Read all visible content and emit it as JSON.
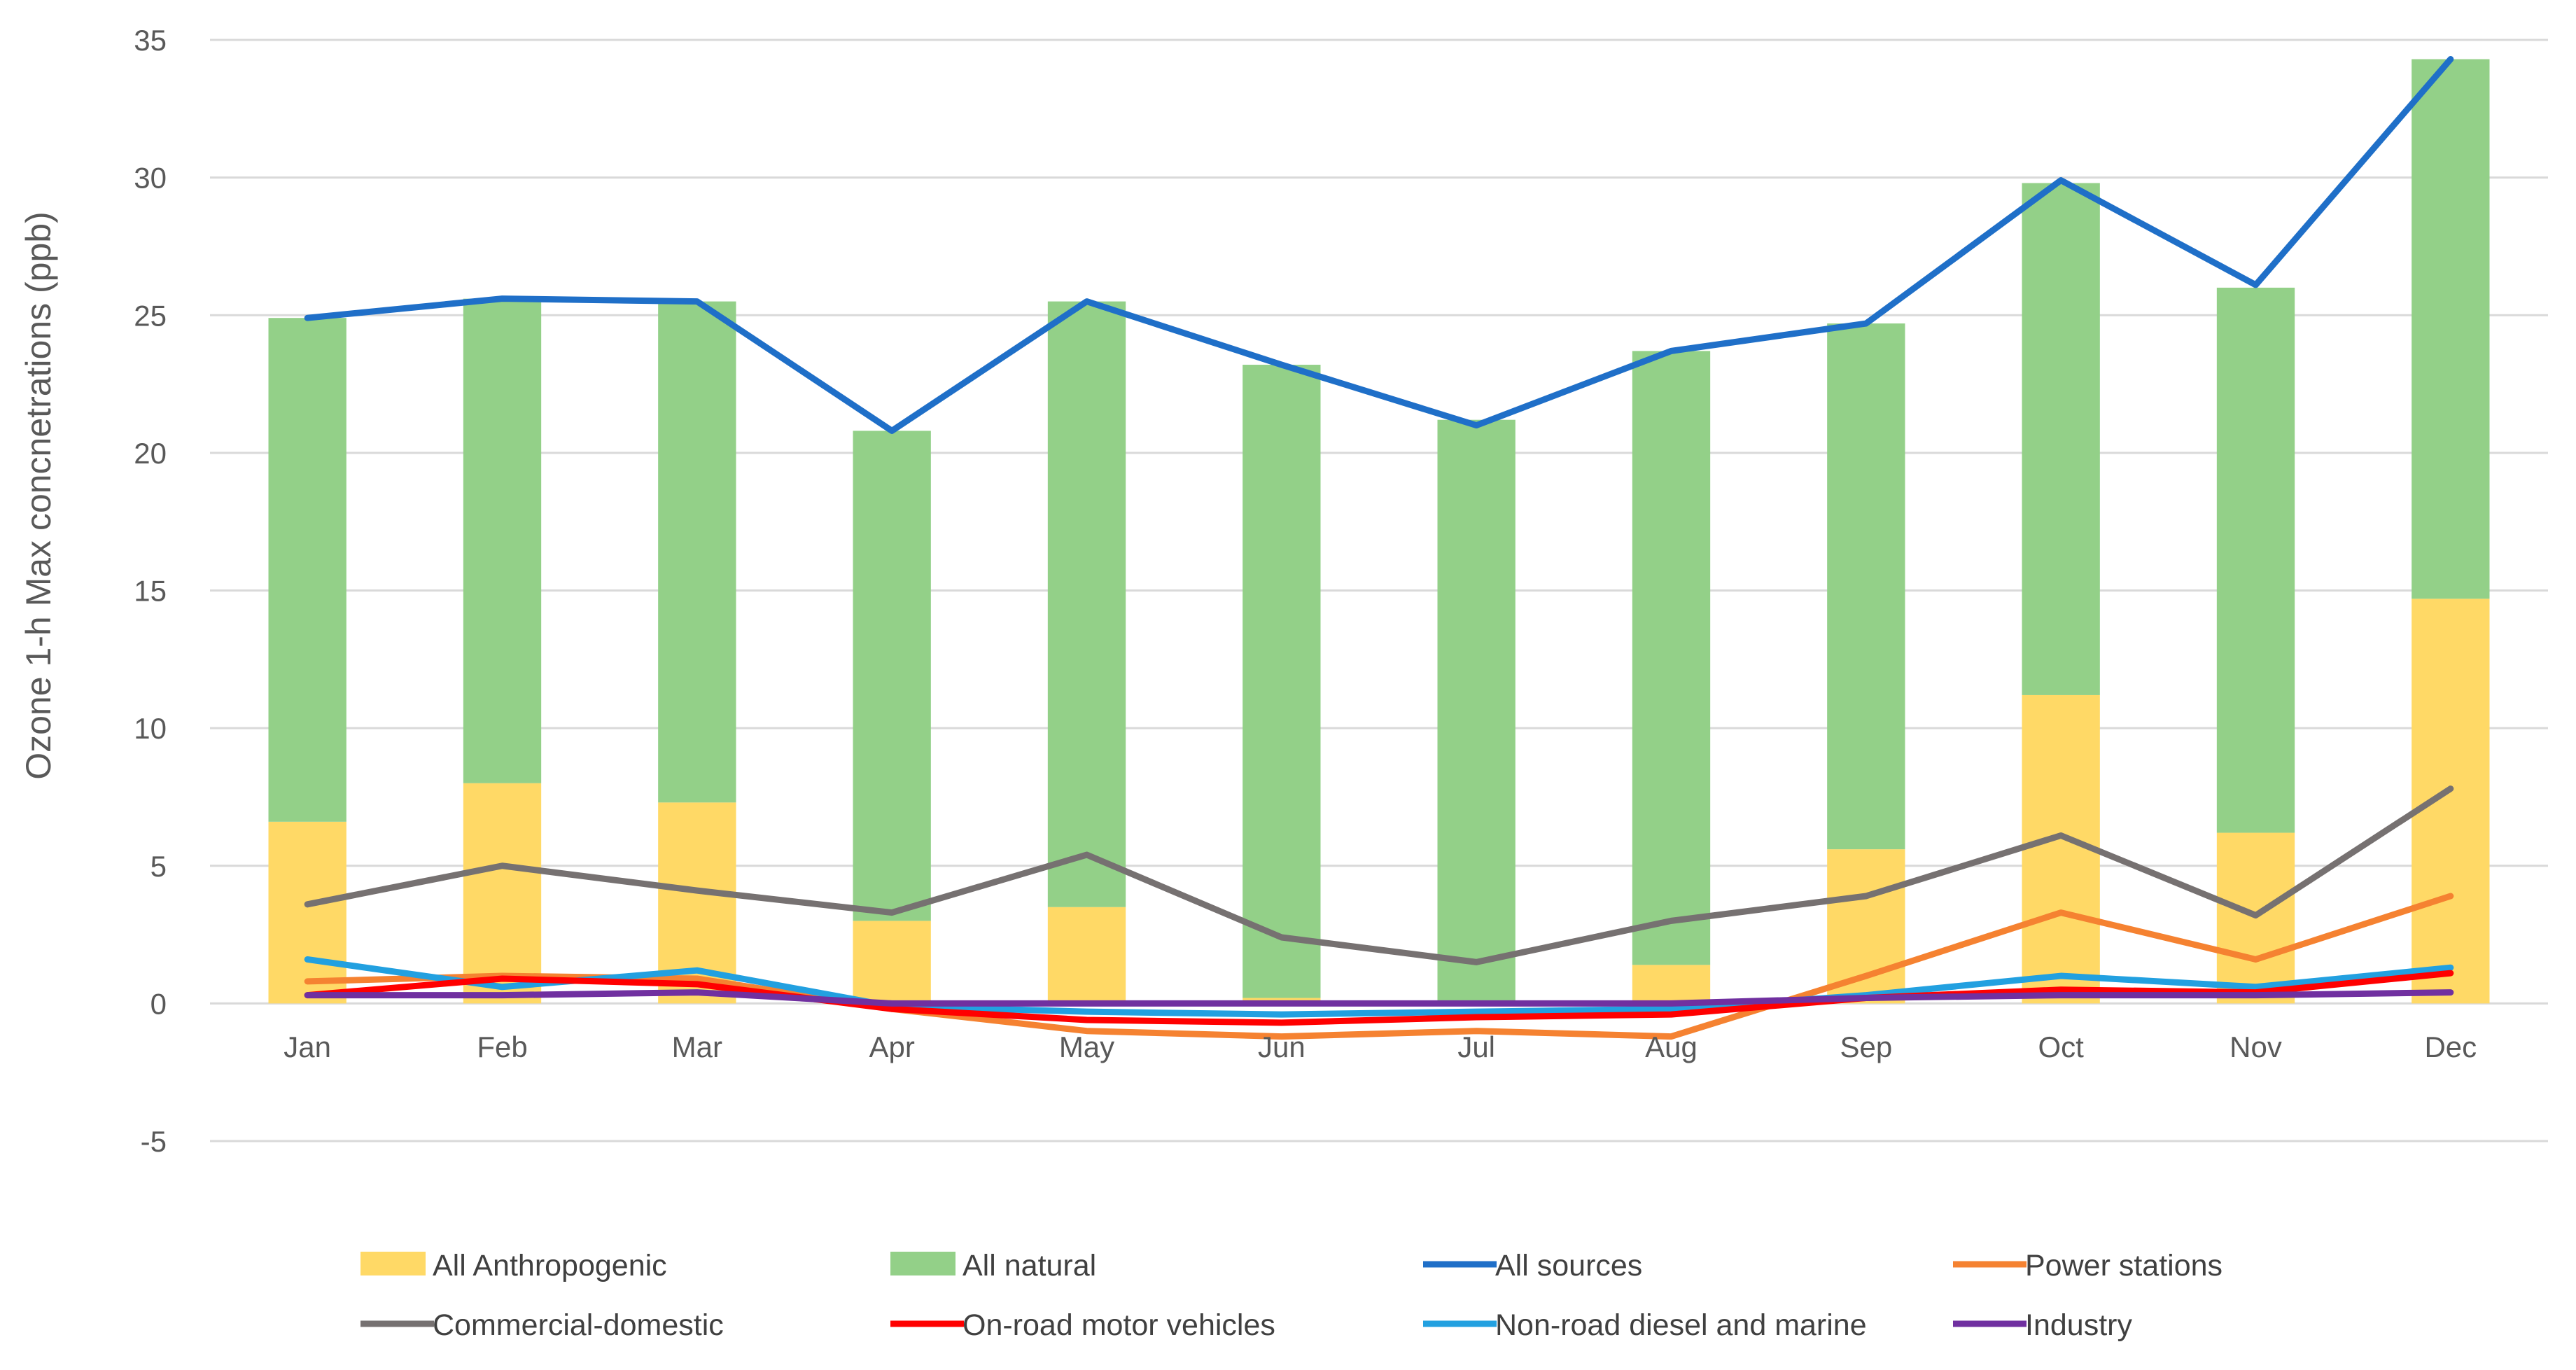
{
  "chart_data": {
    "type": "bar",
    "title": "",
    "xlabel": "",
    "ylabel": "Ozone 1-h Max concnetrations (ppb)",
    "ylim": [
      -5,
      35
    ],
    "yticks": [
      "-5",
      "0",
      "5",
      "10",
      "15",
      "20",
      "25",
      "30",
      "35"
    ],
    "grid": true,
    "legend_position": "bottom",
    "categories": [
      "Jan",
      "Feb",
      "Mar",
      "Apr",
      "May",
      "Jun",
      "Jul",
      "Aug",
      "Sep",
      "Oct",
      "Nov",
      "Dec"
    ],
    "stacked_bars": [
      {
        "name": "All Anthropogenic",
        "color": "#ffd966",
        "values": [
          6.6,
          8.0,
          7.3,
          3.0,
          3.5,
          0.2,
          0.0,
          1.4,
          5.6,
          11.2,
          6.2,
          14.7
        ]
      },
      {
        "name": "All natural",
        "color": "#93d088",
        "values": [
          18.3,
          17.6,
          18.2,
          17.8,
          22.0,
          23.0,
          21.2,
          22.3,
          19.1,
          18.6,
          19.8,
          19.6
        ]
      }
    ],
    "lines": [
      {
        "name": "All sources",
        "color": "#1f6fc8",
        "values": [
          24.9,
          25.6,
          25.5,
          20.8,
          25.5,
          23.2,
          21.0,
          23.7,
          24.7,
          29.9,
          26.1,
          34.3
        ]
      },
      {
        "name": "Power stations",
        "color": "#f58231",
        "values": [
          0.8,
          1.0,
          0.9,
          -0.2,
          -1.0,
          -1.2,
          -1.0,
          -1.2,
          1.0,
          3.3,
          1.6,
          3.9
        ]
      },
      {
        "name": "Commercial-domestic",
        "color": "#767171",
        "values": [
          3.6,
          5.0,
          4.1,
          3.3,
          5.4,
          2.4,
          1.5,
          3.0,
          3.9,
          6.1,
          3.2,
          7.8
        ]
      },
      {
        "name": "On-road motor vehicles",
        "color": "#ff0000",
        "values": [
          0.3,
          0.9,
          0.7,
          -0.2,
          -0.6,
          -0.7,
          -0.5,
          -0.4,
          0.2,
          0.5,
          0.4,
          1.1
        ]
      },
      {
        "name": "Non-road diesel and marine",
        "color": "#22a0e0",
        "values": [
          1.6,
          0.6,
          1.2,
          -0.1,
          -0.3,
          -0.4,
          -0.3,
          -0.2,
          0.3,
          1.0,
          0.6,
          1.3
        ]
      },
      {
        "name": "Industry",
        "color": "#7030a0",
        "values": [
          0.3,
          0.3,
          0.4,
          0.0,
          0.0,
          0.0,
          0.0,
          0.0,
          0.2,
          0.3,
          0.3,
          0.4
        ]
      }
    ],
    "legend_order": [
      "All Anthropogenic",
      "All natural",
      "All sources",
      "Power stations",
      "Commercial-domestic",
      "On-road motor vehicles",
      "Non-road diesel and marine",
      "Industry"
    ]
  }
}
